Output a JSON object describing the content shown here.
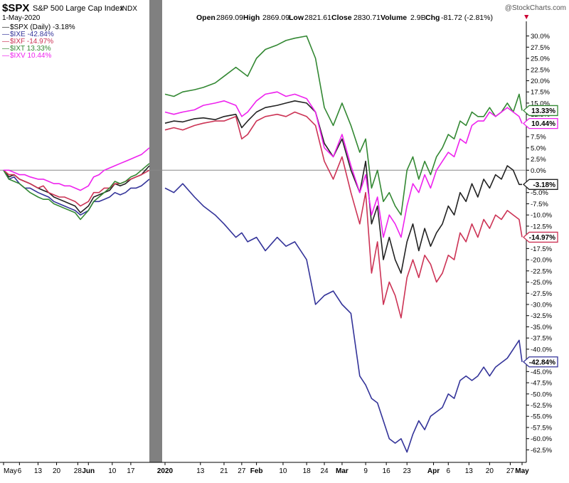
{
  "header": {
    "symbol": "$SPX",
    "name": "S&P 500 Large Cap Index",
    "exchange": "INDX",
    "date": "1-May-2020",
    "copyright": "@StockCharts.com",
    "open_label": "Open",
    "open": "2869.09",
    "high_label": "High",
    "high": "2869.09",
    "low_label": "Low",
    "low": "2821.61",
    "close_label": "Close",
    "close": "2830.71",
    "volume_label": "Volume",
    "volume": "2.9B",
    "chg_label": "Chg",
    "chg": "-81.72 (-2.81%)",
    "chg_marker": "▼"
  },
  "chart_data": {
    "type": "line",
    "ylim": [
      -64.5,
      32
    ],
    "y_ticks": [
      "30.0%",
      "27.5%",
      "25.0%",
      "22.5%",
      "20.0%",
      "17.5%",
      "15.0%",
      "12.5%",
      "10.0%",
      "7.5%",
      "5.0%",
      "2.5%",
      "0.0%",
      "-2.5%",
      "-5.0%",
      "-7.5%",
      "-10.0%",
      "-12.5%",
      "-15.0%",
      "-17.5%",
      "-20.0%",
      "-22.5%",
      "-25.0%",
      "-27.5%",
      "-30.0%",
      "-32.5%",
      "-35.0%",
      "-37.5%",
      "-40.0%",
      "-42.5%",
      "-45.0%",
      "-47.5%",
      "-50.0%",
      "-52.5%",
      "-55.0%",
      "-57.5%",
      "-60.0%",
      "-62.5%"
    ],
    "y_tick_values": [
      30,
      27.5,
      25,
      22.5,
      20,
      17.5,
      15,
      12.5,
      10,
      7.5,
      5,
      2.5,
      0,
      -2.5,
      -5,
      -7.5,
      -10,
      -12.5,
      -15,
      -17.5,
      -20,
      -22.5,
      -25,
      -27.5,
      -30,
      -32.5,
      -35,
      -37.5,
      -40,
      -42.5,
      -45,
      -47.5,
      -50,
      -52.5,
      -55,
      -57.5,
      -60,
      -62.5
    ],
    "panels": [
      {
        "x_labels": [
          "May",
          "6",
          "13",
          "20",
          "28",
          "Jun",
          "10",
          "17"
        ],
        "x_label_days": [
          0,
          6,
          13,
          20,
          28,
          32,
          41,
          48
        ],
        "x_bold": [
          false,
          false,
          false,
          false,
          false,
          true,
          false,
          false
        ],
        "series": [
          {
            "name": "$SPX (Daily)",
            "color": "#222222",
            "x": [
              0,
              2,
              4,
              6,
              8,
              10,
              13,
              15,
              17,
              19,
              21,
              23,
              25,
              27,
              29,
              32,
              34,
              36,
              38,
              40,
              42,
              44,
              46,
              48,
              50,
              52,
              55
            ],
            "y": [
              0,
              -1.5,
              -1,
              -2,
              -2.5,
              -3,
              -4,
              -4.5,
              -5,
              -6,
              -6.5,
              -7,
              -7.5,
              -8,
              -9.5,
              -8,
              -6,
              -5.5,
              -5,
              -4.5,
              -3,
              -3.5,
              -3,
              -2,
              -1.5,
              -1,
              1
            ]
          },
          {
            "name": "$IXE",
            "color": "#333399",
            "x": [
              0,
              2,
              4,
              6,
              8,
              10,
              13,
              15,
              17,
              19,
              21,
              23,
              25,
              27,
              29,
              32,
              34,
              36,
              38,
              40,
              42,
              44,
              46,
              48,
              50,
              52,
              55
            ],
            "y": [
              0,
              -2,
              -1.5,
              -3,
              -4,
              -4,
              -5,
              -5.5,
              -6,
              -7,
              -7.5,
              -8,
              -8.5,
              -9,
              -10,
              -9,
              -7,
              -7,
              -6.5,
              -6,
              -5,
              -5.5,
              -5,
              -4,
              -4,
              -3.5,
              -2
            ]
          },
          {
            "name": "$IXF",
            "color": "#cc3355",
            "x": [
              0,
              2,
              4,
              6,
              8,
              10,
              13,
              15,
              17,
              19,
              21,
              23,
              25,
              27,
              29,
              32,
              34,
              36,
              38,
              40,
              42,
              44,
              46,
              48,
              50,
              52,
              55
            ],
            "y": [
              0,
              -1,
              -1,
              -2,
              -2.5,
              -3,
              -4,
              -3.5,
              -5,
              -5.5,
              -6,
              -6,
              -6.5,
              -7,
              -8,
              -7,
              -5,
              -5,
              -4,
              -4,
              -3,
              -3,
              -2.5,
              -2,
              -1.5,
              -1,
              0
            ]
          },
          {
            "name": "$IXT",
            "color": "#338833",
            "x": [
              0,
              2,
              4,
              6,
              8,
              10,
              13,
              15,
              17,
              19,
              21,
              23,
              25,
              27,
              29,
              32,
              34,
              36,
              38,
              40,
              42,
              44,
              46,
              48,
              50,
              52,
              55
            ],
            "y": [
              0,
              -2,
              -2.5,
              -3,
              -4,
              -5,
              -6,
              -6.5,
              -6.5,
              -7.5,
              -8,
              -8.5,
              -9,
              -9.5,
              -11,
              -9,
              -7,
              -6,
              -5,
              -4,
              -2.5,
              -3,
              -2.5,
              -1.5,
              -1,
              0,
              1.5
            ]
          },
          {
            "name": "$IXV",
            "color": "#ee22ee",
            "x": [
              0,
              2,
              4,
              6,
              8,
              10,
              13,
              15,
              17,
              19,
              21,
              23,
              25,
              27,
              29,
              32,
              34,
              36,
              38,
              40,
              42,
              44,
              46,
              48,
              50,
              52,
              55
            ],
            "y": [
              0,
              0,
              -0.5,
              -1,
              -1,
              -1.5,
              -2,
              -2,
              -2.5,
              -3,
              -3,
              -3.5,
              -3.5,
              -4,
              -4.5,
              -3.5,
              -1.5,
              -1,
              0,
              0.5,
              1,
              1.5,
              2,
              2.5,
              3,
              3.5,
              5
            ]
          }
        ]
      },
      {
        "x_labels": [
          "2020",
          "13",
          "21",
          "27",
          "Feb",
          "10",
          "18",
          "24",
          "Mar",
          "9",
          "16",
          "23",
          "Apr",
          "6",
          "13",
          "20",
          "27",
          "May"
        ],
        "x_label_days": [
          0,
          12,
          20,
          26,
          31,
          40,
          48,
          54,
          60,
          68,
          75,
          82,
          91,
          96,
          103,
          110,
          117,
          121
        ],
        "x_bold": [
          true,
          false,
          false,
          false,
          true,
          false,
          false,
          false,
          true,
          false,
          false,
          false,
          true,
          false,
          false,
          false,
          false,
          true
        ],
        "series": [
          {
            "name": "$SPX (Daily) -3.18%",
            "color": "#222222",
            "x": [
              0,
              3,
              6,
              10,
              13,
              17,
              20,
              24,
              26,
              28,
              31,
              34,
              38,
              41,
              44,
              48,
              51,
              54,
              57,
              60,
              63,
              66,
              68,
              70,
              72,
              74,
              76,
              78,
              80,
              82,
              84,
              86,
              88,
              90,
              92,
              94,
              96,
              98,
              100,
              102,
              104,
              106,
              108,
              110,
              112,
              114,
              116,
              118,
              120,
              121
            ],
            "y": [
              10.5,
              11,
              10.8,
              11.5,
              11.7,
              11.3,
              12,
              12.5,
              9.5,
              11,
              13,
              14,
              14.5,
              15,
              15.5,
              15,
              13,
              6,
              3,
              7,
              0,
              -5,
              2,
              -12,
              -8,
              -20,
              -15,
              -20,
              -23,
              -16,
              -12,
              -18,
              -13,
              -17,
              -14,
              -12,
              -8,
              -10,
              -5,
              -7,
              -3,
              -6,
              -2,
              -4,
              -1,
              -2,
              1,
              0,
              -3.18,
              -3.18
            ]
          },
          {
            "name": "$IXE -42.84%",
            "color": "#333399",
            "x": [
              0,
              3,
              6,
              10,
              13,
              17,
              20,
              24,
              26,
              28,
              31,
              34,
              38,
              41,
              44,
              48,
              51,
              54,
              57,
              60,
              63,
              66,
              68,
              70,
              72,
              74,
              76,
              78,
              80,
              82,
              84,
              86,
              88,
              90,
              92,
              94,
              96,
              98,
              100,
              102,
              104,
              106,
              108,
              110,
              112,
              114,
              116,
              118,
              120,
              121
            ],
            "y": [
              -4,
              -5,
              -3,
              -6,
              -8,
              -10,
              -12,
              -15,
              -14,
              -16,
              -15,
              -18,
              -15,
              -17,
              -16,
              -20,
              -30,
              -28,
              -27,
              -30,
              -32,
              -46,
              -48,
              -51,
              -52,
              -56,
              -60,
              -61,
              -60,
              -63,
              -59,
              -56,
              -58,
              -55,
              -54,
              -53,
              -50,
              -51,
              -47,
              -46,
              -47,
              -46,
              -44,
              -46,
              -44,
              -43,
              -42,
              -40,
              -38,
              -42.84
            ]
          },
          {
            "name": "$IXF -14.97%",
            "color": "#cc3355",
            "x": [
              0,
              3,
              6,
              10,
              13,
              17,
              20,
              24,
              26,
              28,
              31,
              34,
              38,
              41,
              44,
              48,
              51,
              54,
              57,
              60,
              63,
              66,
              68,
              70,
              72,
              74,
              76,
              78,
              80,
              82,
              84,
              86,
              88,
              90,
              92,
              94,
              96,
              98,
              100,
              102,
              104,
              106,
              108,
              110,
              112,
              114,
              116,
              118,
              120,
              121
            ],
            "y": [
              9,
              9.5,
              9,
              10,
              10.5,
              11,
              11,
              12,
              7,
              8,
              11,
              12,
              12.5,
              12,
              13,
              12,
              10,
              2,
              -2,
              3,
              -5,
              -12,
              -5,
              -23,
              -16,
              -30,
              -25,
              -28,
              -33,
              -24,
              -20,
              -24,
              -19,
              -21,
              -25,
              -23,
              -19,
              -20,
              -14,
              -16,
              -12,
              -15,
              -11,
              -13,
              -10,
              -11,
              -9,
              -10,
              -11,
              -14.97
            ]
          },
          {
            "name": "$IXT 13.33%",
            "color": "#338833",
            "x": [
              0,
              3,
              6,
              10,
              13,
              17,
              20,
              24,
              26,
              28,
              31,
              34,
              38,
              41,
              44,
              48,
              51,
              54,
              57,
              60,
              63,
              66,
              68,
              70,
              72,
              74,
              76,
              78,
              80,
              82,
              84,
              86,
              88,
              90,
              92,
              94,
              96,
              98,
              100,
              102,
              104,
              106,
              108,
              110,
              112,
              114,
              116,
              118,
              120,
              121
            ],
            "y": [
              17,
              16.5,
              17.5,
              18,
              18.5,
              19.5,
              21,
              23,
              22,
              21,
              25,
              27,
              28,
              29,
              29.5,
              30,
              25,
              14,
              10,
              15,
              10,
              4,
              7,
              -4,
              0,
              -7,
              -5,
              -8,
              -10,
              0,
              3,
              -2,
              2,
              -1,
              3,
              5,
              8,
              7,
              11,
              10,
              13,
              12,
              12,
              14,
              12,
              13,
              15,
              13,
              17,
              13.33
            ]
          },
          {
            "name": "$IXV 10.44%",
            "color": "#ee22ee",
            "x": [
              0,
              3,
              6,
              10,
              13,
              17,
              20,
              24,
              26,
              28,
              31,
              34,
              38,
              41,
              44,
              48,
              51,
              54,
              57,
              60,
              63,
              66,
              68,
              70,
              72,
              74,
              76,
              78,
              80,
              82,
              84,
              86,
              88,
              90,
              92,
              94,
              96,
              98,
              100,
              102,
              104,
              106,
              108,
              110,
              112,
              114,
              116,
              118,
              120,
              121
            ],
            "y": [
              13,
              12.5,
              13,
              13.5,
              14.5,
              15,
              15.5,
              14.5,
              12,
              13,
              15.5,
              17,
              17.5,
              16.5,
              17,
              16,
              13,
              5,
              3,
              8,
              1,
              -5,
              -1,
              -10,
              -6,
              -15,
              -10,
              -12,
              -15,
              -8,
              -3,
              -5,
              -1,
              -4,
              0,
              2,
              4,
              3,
              7,
              6,
              10,
              11,
              11,
              13,
              12,
              13,
              14,
              13,
              12,
              10.44
            ]
          }
        ]
      }
    ],
    "end_tags": [
      {
        "text": "13.33%",
        "value": 13.33,
        "color": "#338833"
      },
      {
        "text": "10.44%",
        "value": 10.44,
        "color": "#ee22ee"
      },
      {
        "text": "-3.18%",
        "value": -3.18,
        "color": "#222222"
      },
      {
        "text": "-14.97%",
        "value": -14.97,
        "color": "#cc3355"
      },
      {
        "text": "-42.84%",
        "value": -42.84,
        "color": "#333399"
      }
    ]
  },
  "legend": [
    {
      "marker": "—",
      "text": "$SPX (Daily) -3.18%",
      "color": "#222222"
    },
    {
      "marker": "—",
      "text": "$IXE -42.84%",
      "color": "#333399"
    },
    {
      "marker": "—",
      "text": "$IXF -14.97%",
      "color": "#cc3355"
    },
    {
      "marker": "—",
      "text": "$IXT 13.33%",
      "color": "#338833"
    },
    {
      "marker": "—",
      "text": "$IXV 10.44%",
      "color": "#ee22ee"
    }
  ]
}
